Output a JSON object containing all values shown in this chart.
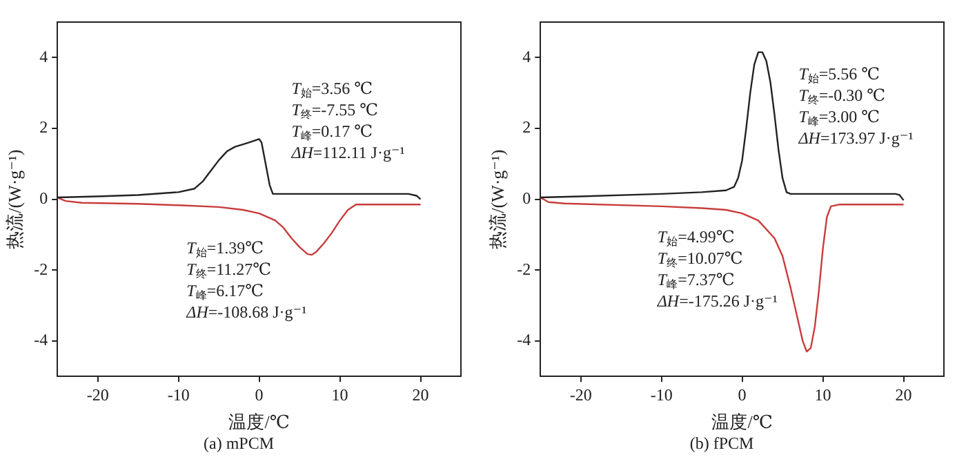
{
  "chart_data": [
    {
      "type": "line",
      "title": "(a) mPCM",
      "xlabel": "温度/℃",
      "ylabel": "热流/(W·g⁻¹)",
      "xlim": [
        -25,
        25
      ],
      "xticks": [
        -20,
        -10,
        0,
        10,
        20
      ],
      "ylim": [
        -5,
        5
      ],
      "yticks": [
        -4,
        -2,
        0,
        2,
        4
      ],
      "grid": false,
      "legend": false,
      "marker": "none",
      "line_style": "solid",
      "series": [
        {
          "color": "#222222",
          "x": [
            -25,
            -20,
            -15,
            -10,
            -8,
            -7,
            -6,
            -5,
            -4,
            -3,
            -2,
            -1,
            0,
            0.3,
            0.8,
            1.3,
            1.7,
            5,
            10,
            15,
            18.5,
            19.5,
            20
          ],
          "values": [
            0.05,
            0.08,
            0.12,
            0.2,
            0.3,
            0.5,
            0.8,
            1.1,
            1.35,
            1.48,
            1.55,
            1.62,
            1.7,
            1.6,
            1.0,
            0.4,
            0.15,
            0.15,
            0.15,
            0.15,
            0.15,
            0.1,
            0.0
          ]
        },
        {
          "color": "#c83c3c",
          "x": [
            -25,
            -24,
            -22,
            -15,
            -10,
            -5,
            -2,
            0,
            2,
            3,
            4,
            5,
            6,
            6.5,
            7,
            8,
            9,
            10,
            11,
            12,
            15,
            20
          ],
          "values": [
            0.05,
            -0.05,
            -0.1,
            -0.13,
            -0.17,
            -0.22,
            -0.3,
            -0.4,
            -0.6,
            -0.8,
            -1.1,
            -1.35,
            -1.55,
            -1.57,
            -1.5,
            -1.25,
            -0.95,
            -0.6,
            -0.3,
            -0.15,
            -0.15,
            -0.15
          ]
        }
      ],
      "annotations": [
        "T$_{始}$=3.56 ℃",
        "T$_{终}$=-7.55 ℃",
        "T$_{峰}$=0.17 ℃",
        "ΔH=112.11 J·g⁻¹",
        "T$_{始}$=1.39℃",
        "T$_{终}$=11.27℃",
        "T$_{峰}$=6.17℃",
        "ΔH=-108.68 J·g⁻¹"
      ]
    },
    {
      "type": "line",
      "title": "(b) fPCM",
      "xlabel": "温度/℃",
      "ylabel": "热流/(W·g⁻¹)",
      "xlim": [
        -25,
        25
      ],
      "xticks": [
        -20,
        -10,
        0,
        10,
        20
      ],
      "ylim": [
        -5,
        5
      ],
      "yticks": [
        -4,
        -2,
        0,
        2,
        4
      ],
      "grid": false,
      "legend": false,
      "marker": "none",
      "line_style": "solid",
      "series": [
        {
          "color": "#222222",
          "x": [
            -25,
            -20,
            -10,
            -5,
            -2,
            -1,
            -0.5,
            0,
            0.5,
            1,
            1.5,
            2,
            2.5,
            3,
            3.5,
            4,
            4.5,
            5,
            5.5,
            6,
            10,
            19,
            19.5,
            20
          ],
          "values": [
            0.05,
            0.08,
            0.15,
            0.2,
            0.25,
            0.35,
            0.6,
            1.1,
            2.0,
            3.0,
            3.8,
            4.15,
            4.15,
            3.9,
            3.3,
            2.4,
            1.4,
            0.6,
            0.2,
            0.15,
            0.15,
            0.15,
            0.12,
            -0.03
          ]
        },
        {
          "color": "#c83c3c",
          "x": [
            -25,
            -24,
            -22,
            -10,
            -5,
            -2,
            0,
            2,
            4,
            5,
            6,
            7,
            7.5,
            8,
            8.5,
            9,
            9.5,
            10,
            10.5,
            11,
            12,
            20
          ],
          "values": [
            0.05,
            -0.08,
            -0.12,
            -0.2,
            -0.25,
            -0.3,
            -0.4,
            -0.6,
            -1.1,
            -1.6,
            -2.5,
            -3.5,
            -4.0,
            -4.3,
            -4.2,
            -3.6,
            -2.6,
            -1.4,
            -0.5,
            -0.2,
            -0.15,
            -0.15
          ]
        }
      ],
      "annotations": [
        "T$_{始}$=5.56 ℃",
        "T$_{终}$=-0.30 ℃",
        "T$_{峰}$=3.00 ℃",
        "ΔH=173.97 J·g⁻¹",
        "T$_{始}$=4.99℃",
        "T$_{终}$=10.07℃",
        "T$_{峰}$=7.37℃",
        "ΔH=-175.26 J·g⁻¹"
      ]
    }
  ]
}
